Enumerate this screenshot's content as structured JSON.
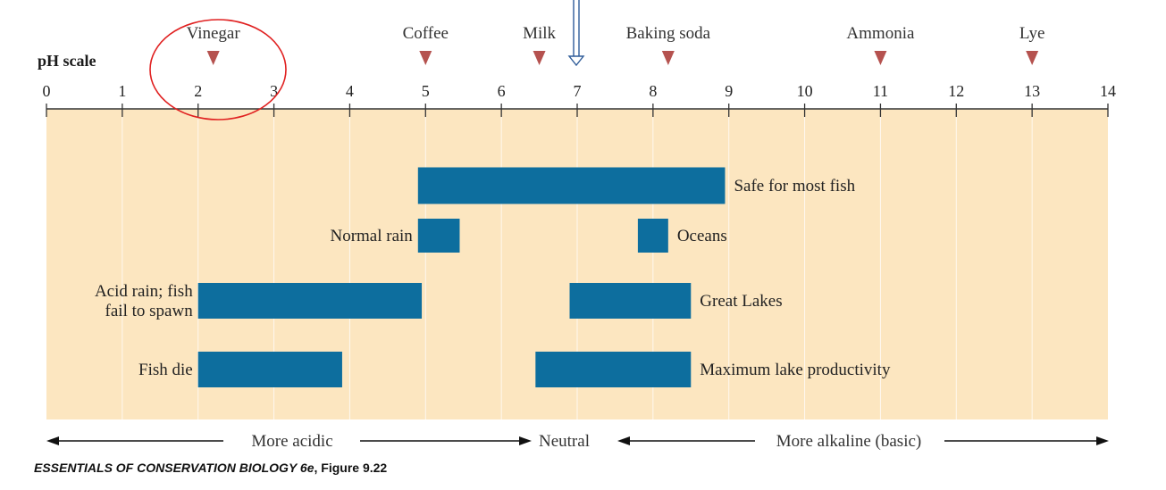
{
  "chart_data": {
    "type": "bar",
    "title": "",
    "axis_label": "pH scale",
    "xlim": [
      0,
      14
    ],
    "ticks": [
      "0",
      "1",
      "2",
      "3",
      "4",
      "5",
      "6",
      "7",
      "8",
      "9",
      "10",
      "11",
      "12",
      "13",
      "14"
    ],
    "substances": [
      {
        "label": "Vinegar",
        "ph": 2.2
      },
      {
        "label": "Coffee",
        "ph": 5.0
      },
      {
        "label": "Milk",
        "ph": 6.5
      },
      {
        "label": "Baking soda",
        "ph": 8.2
      },
      {
        "label": "Ammonia",
        "ph": 11.0
      },
      {
        "label": "Lye",
        "ph": 13.0
      }
    ],
    "ranges": [
      {
        "label": "Safe for most fish",
        "start": 4.9,
        "end": 8.95,
        "label_side": "right"
      },
      {
        "label": "Normal rain",
        "start": 4.9,
        "end": 5.45,
        "label_side": "left"
      },
      {
        "label": "Oceans",
        "start": 7.8,
        "end": 8.2,
        "label_side": "right"
      },
      {
        "label": "Acid rain; fish fail to spawn",
        "label_lines": [
          "Acid rain; fish",
          "fail to spawn"
        ],
        "start": 2.0,
        "end": 4.95,
        "label_side": "left"
      },
      {
        "label": "Great Lakes",
        "start": 6.9,
        "end": 8.5,
        "label_side": "right"
      },
      {
        "label": "Fish die",
        "start": 2.0,
        "end": 3.9,
        "label_side": "left"
      },
      {
        "label": "Maximum lake productivity",
        "start": 6.45,
        "end": 8.5,
        "label_side": "right"
      }
    ],
    "direction_labels": {
      "acidic": "More acidic",
      "neutral": "Neutral",
      "alkaline": "More alkaline (basic)"
    },
    "colors": {
      "background": "#FCE6C0",
      "bar": "#0D6E9E",
      "marker": "#B5524F",
      "axis": "#333333",
      "highlight_circle": "#E02020",
      "pointer_arrow": "#2F5C99"
    }
  },
  "caption": {
    "title": "ESSENTIALS OF CONSERVATION BIOLOGY 6e",
    "figure": ", Figure 9.22"
  }
}
